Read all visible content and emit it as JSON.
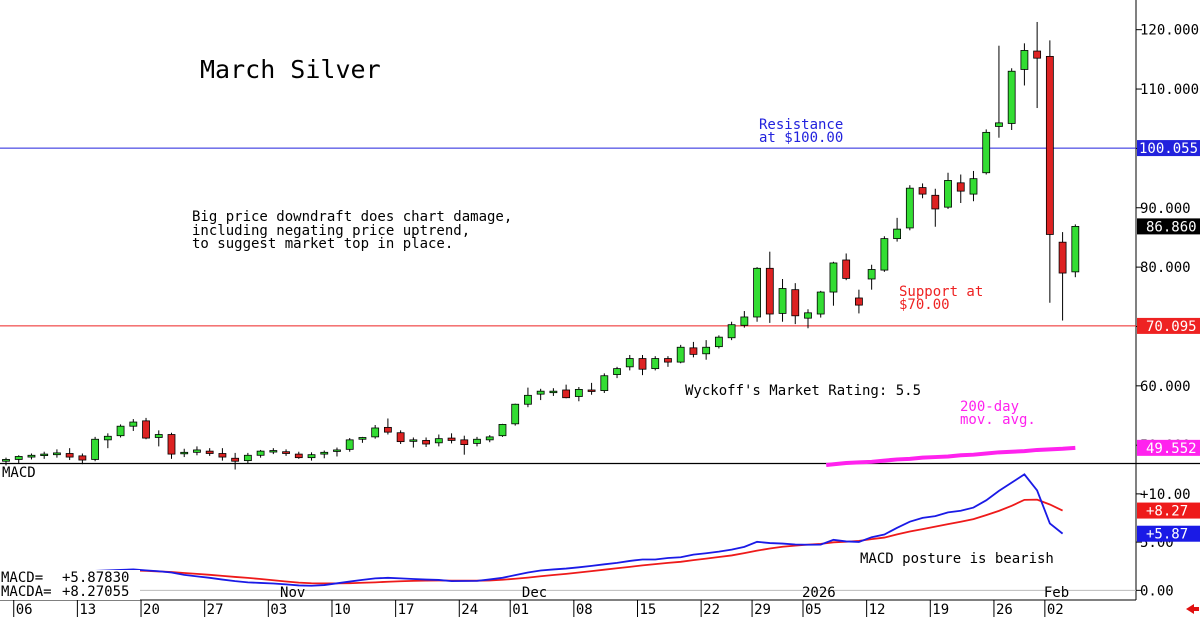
{
  "title": "March Silver",
  "colors": {
    "up": "#33dd33",
    "down": "#dd2222",
    "resistance": "#2222dd",
    "support": "#ee2222",
    "ma": "#ff22ee",
    "macd": "#1a1ae6",
    "macda": "#ee1a1a",
    "last_price_badge": "#000000"
  },
  "annotations": {
    "resistance": [
      "Resistance",
      "at $100.00"
    ],
    "support": [
      "Support at",
      "$70.00"
    ],
    "commentary": [
      "Big price downdraft does chart damage,",
      "including negating price uptrend,",
      "to suggest market top in place."
    ],
    "rating": "Wyckoff's Market Rating: 5.5",
    "ma_label": [
      "200-day",
      "mov. avg."
    ],
    "macd_comment": "MACD posture is bearish"
  },
  "badges": {
    "resistance": "100.055",
    "last_price": "86.860",
    "support": "70.095",
    "ma": "49.552",
    "macda": "+8.27",
    "macd": "+5.87"
  },
  "macd_panel": {
    "label": "MACD",
    "readouts": [
      {
        "name": "MACD=",
        "value": "+5.87830"
      },
      {
        "name": "MACDA=",
        "value": "+8.27055"
      }
    ]
  },
  "chart_data": [
    {
      "type": "candlestick",
      "title": "March Silver",
      "ylim": [
        47,
        125
      ],
      "y_ticks": [
        50,
        60,
        70,
        80,
        90,
        100,
        110,
        120
      ],
      "y_tick_labels": [
        "50.000",
        "60.000",
        "70.000",
        "80.000",
        "90.000",
        "100.000",
        "110.000",
        "120.000"
      ],
      "x_tick_labels": [
        {
          "label": "06",
          "index": 1
        },
        {
          "label": "13",
          "index": 6
        },
        {
          "label": "20",
          "index": 11
        },
        {
          "label": "27",
          "index": 16
        },
        {
          "label": "03",
          "index": 21
        },
        {
          "label": "10",
          "index": 26
        },
        {
          "label": "17",
          "index": 31
        },
        {
          "label": "24",
          "index": 36
        },
        {
          "label": "01",
          "index": 40
        },
        {
          "label": "08",
          "index": 45
        },
        {
          "label": "15",
          "index": 50
        },
        {
          "label": "22",
          "index": 55
        },
        {
          "label": "29",
          "index": 59
        },
        {
          "label": "05",
          "index": 63
        },
        {
          "label": "12",
          "index": 68
        },
        {
          "label": "19",
          "index": 73
        },
        {
          "label": "26",
          "index": 78
        },
        {
          "label": "02",
          "index": 82
        }
      ],
      "period_labels": [
        {
          "label": "Nov",
          "index": 22
        },
        {
          "label": "Dec",
          "index": 41
        },
        {
          "label": "2026",
          "index": 63
        },
        {
          "label": "Feb",
          "index": 82
        }
      ],
      "candles": [
        [
          47.3,
          47.9,
          46.6,
          47.6
        ],
        [
          47.6,
          48.3,
          47.0,
          48.1
        ],
        [
          48.0,
          48.6,
          47.6,
          48.3
        ],
        [
          48.3,
          48.9,
          47.7,
          48.5
        ],
        [
          48.4,
          49.3,
          47.9,
          48.7
        ],
        [
          48.6,
          49.5,
          47.5,
          48.0
        ],
        [
          48.2,
          48.6,
          46.8,
          47.5
        ],
        [
          47.6,
          51.4,
          47.3,
          51.0
        ],
        [
          50.9,
          52.0,
          49.5,
          51.5
        ],
        [
          51.6,
          53.5,
          51.3,
          53.2
        ],
        [
          53.2,
          54.4,
          52.4,
          53.9
        ],
        [
          54.1,
          54.6,
          51.0,
          51.2
        ],
        [
          51.3,
          52.5,
          49.8,
          51.8
        ],
        [
          51.8,
          52.1,
          47.7,
          48.5
        ],
        [
          48.6,
          49.4,
          48.0,
          48.8
        ],
        [
          48.8,
          49.8,
          48.3,
          49.2
        ],
        [
          49.0,
          49.5,
          48.2,
          48.6
        ],
        [
          48.6,
          49.5,
          47.4,
          48.0
        ],
        [
          47.8,
          48.7,
          45.9,
          47.3
        ],
        [
          47.4,
          48.7,
          47.0,
          48.3
        ],
        [
          48.3,
          49.2,
          47.9,
          49.0
        ],
        [
          49.0,
          49.5,
          48.5,
          49.1
        ],
        [
          48.9,
          49.3,
          48.2,
          48.6
        ],
        [
          48.5,
          48.9,
          47.7,
          47.9
        ],
        [
          47.9,
          48.8,
          47.4,
          48.4
        ],
        [
          48.5,
          49.1,
          47.8,
          48.8
        ],
        [
          49.0,
          49.6,
          48.1,
          49.2
        ],
        [
          49.3,
          51.2,
          48.9,
          50.9
        ],
        [
          51.0,
          51.4,
          50.4,
          51.3
        ],
        [
          51.4,
          53.4,
          51.1,
          52.9
        ],
        [
          53.0,
          54.5,
          51.8,
          52.2
        ],
        [
          52.1,
          52.5,
          50.2,
          50.6
        ],
        [
          50.7,
          51.3,
          49.6,
          50.9
        ],
        [
          50.8,
          51.3,
          49.7,
          50.2
        ],
        [
          50.4,
          51.8,
          49.8,
          51.1
        ],
        [
          51.2,
          52.0,
          50.3,
          50.8
        ],
        [
          50.9,
          51.6,
          48.4,
          50.1
        ],
        [
          50.3,
          51.4,
          49.8,
          51.0
        ],
        [
          50.9,
          51.7,
          50.5,
          51.4
        ],
        [
          51.6,
          53.6,
          51.4,
          53.5
        ],
        [
          53.6,
          57.0,
          53.3,
          56.9
        ],
        [
          56.9,
          59.7,
          56.4,
          58.4
        ],
        [
          58.6,
          59.5,
          57.6,
          59.1
        ],
        [
          59.1,
          59.6,
          58.3,
          59.1
        ],
        [
          59.3,
          60.2,
          57.9,
          58.0
        ],
        [
          58.2,
          59.8,
          57.4,
          59.4
        ],
        [
          59.3,
          60.5,
          58.5,
          59.2
        ],
        [
          59.2,
          62.1,
          58.8,
          61.7
        ],
        [
          61.9,
          63.2,
          61.3,
          62.9
        ],
        [
          63.2,
          65.2,
          62.6,
          64.6
        ],
        [
          64.6,
          65.2,
          61.8,
          62.8
        ],
        [
          62.9,
          65.0,
          62.6,
          64.6
        ],
        [
          64.6,
          65.0,
          63.2,
          64.0
        ],
        [
          64.0,
          66.9,
          63.8,
          66.5
        ],
        [
          66.4,
          67.4,
          64.8,
          65.3
        ],
        [
          65.4,
          67.7,
          64.4,
          66.5
        ],
        [
          66.6,
          68.5,
          66.3,
          68.2
        ],
        [
          68.1,
          70.8,
          67.7,
          70.3
        ],
        [
          70.2,
          72.6,
          69.8,
          71.6
        ],
        [
          71.6,
          80.0,
          70.8,
          79.8
        ],
        [
          79.8,
          82.6,
          70.6,
          72.1
        ],
        [
          72.2,
          78.0,
          70.8,
          76.4
        ],
        [
          76.2,
          77.3,
          70.4,
          71.8
        ],
        [
          71.4,
          72.9,
          69.7,
          72.3
        ],
        [
          72.1,
          76.0,
          71.5,
          75.8
        ],
        [
          75.8,
          80.9,
          73.5,
          80.7
        ],
        [
          81.2,
          82.3,
          77.8,
          78.1
        ],
        [
          74.8,
          76.2,
          72.2,
          73.6
        ],
        [
          78.0,
          80.4,
          76.2,
          79.6
        ],
        [
          79.5,
          85.2,
          79.2,
          84.8
        ],
        [
          84.8,
          88.3,
          84.3,
          86.4
        ],
        [
          86.6,
          93.8,
          86.2,
          93.3
        ],
        [
          93.4,
          94.1,
          91.6,
          92.3
        ],
        [
          92.1,
          93.2,
          86.8,
          89.8
        ],
        [
          90.1,
          95.9,
          89.8,
          94.6
        ],
        [
          94.2,
          95.6,
          90.8,
          92.8
        ],
        [
          92.3,
          96.2,
          91.1,
          94.9
        ],
        [
          95.9,
          103.2,
          95.6,
          102.7
        ],
        [
          103.7,
          117.3,
          101.8,
          104.3
        ],
        [
          104.2,
          113.5,
          103.1,
          113.0
        ],
        [
          113.3,
          117.7,
          110.6,
          116.5
        ],
        [
          116.4,
          121.3,
          106.8,
          115.2
        ],
        [
          115.5,
          118.2,
          74.0,
          85.5
        ],
        [
          84.2,
          85.9,
          71.0,
          79.0
        ],
        [
          79.2,
          87.2,
          78.3,
          86.86
        ]
      ]
    },
    {
      "type": "line",
      "name": "200-day mov. avg.",
      "start_index": 66,
      "values": [
        47.0,
        47.1,
        47.2,
        47.4,
        47.6,
        47.7,
        47.9,
        48.0,
        48.1,
        48.3,
        48.4,
        48.6,
        48.8,
        48.9,
        49.0,
        49.2,
        49.3,
        49.4,
        49.552
      ]
    },
    {
      "type": "line",
      "title": "MACD",
      "ylim": [
        -1.0,
        13.2
      ],
      "y_ticks": [
        0,
        5,
        10
      ],
      "y_tick_labels": [
        "0.00",
        "5.00",
        "+10.00"
      ],
      "series": [
        {
          "name": "MACD",
          "values": [
            1.6,
            1.66,
            1.72,
            1.78,
            1.84,
            1.9,
            1.96,
            2.02,
            2.07,
            2.12,
            2.17,
            2.07,
            1.98,
            1.85,
            1.6,
            1.45,
            1.3,
            1.12,
            0.96,
            0.83,
            0.77,
            0.71,
            0.62,
            0.51,
            0.48,
            0.55,
            0.73,
            0.91,
            1.09,
            1.24,
            1.3,
            1.24,
            1.18,
            1.12,
            1.08,
            0.96,
            0.97,
            0.98,
            1.13,
            1.3,
            1.58,
            1.85,
            2.06,
            2.17,
            2.26,
            2.39,
            2.54,
            2.7,
            2.85,
            3.05,
            3.2,
            3.2,
            3.35,
            3.43,
            3.7,
            3.85,
            4.01,
            4.22,
            4.51,
            5.03,
            4.9,
            4.85,
            4.75,
            4.73,
            4.74,
            5.24,
            5.07,
            5.02,
            5.51,
            5.79,
            6.48,
            7.12,
            7.51,
            7.69,
            8.08,
            8.25,
            8.58,
            9.33,
            10.31,
            11.17,
            12.02,
            10.35,
            6.94,
            5.88
          ]
        },
        {
          "name": "MACDA",
          "values": [
            1.85,
            1.87,
            1.89,
            1.91,
            1.93,
            1.95,
            1.97,
            2.0,
            2.03,
            2.05,
            2.06,
            2.02,
            1.96,
            1.9,
            1.8,
            1.71,
            1.61,
            1.5,
            1.39,
            1.29,
            1.18,
            1.05,
            0.92,
            0.8,
            0.74,
            0.72,
            0.72,
            0.74,
            0.79,
            0.83,
            0.89,
            0.94,
            0.98,
            1.01,
            1.02,
            1.01,
            1.0,
            1.0,
            1.02,
            1.1,
            1.2,
            1.32,
            1.46,
            1.59,
            1.71,
            1.85,
            1.99,
            2.14,
            2.29,
            2.43,
            2.59,
            2.72,
            2.85,
            2.96,
            3.13,
            3.29,
            3.46,
            3.62,
            3.86,
            4.12,
            4.34,
            4.52,
            4.64,
            4.74,
            4.82,
            4.98,
            5.04,
            5.13,
            5.31,
            5.47,
            5.8,
            6.1,
            6.35,
            6.6,
            6.86,
            7.11,
            7.38,
            7.8,
            8.24,
            8.76,
            9.38,
            9.4,
            8.9,
            8.27
          ]
        }
      ]
    }
  ]
}
